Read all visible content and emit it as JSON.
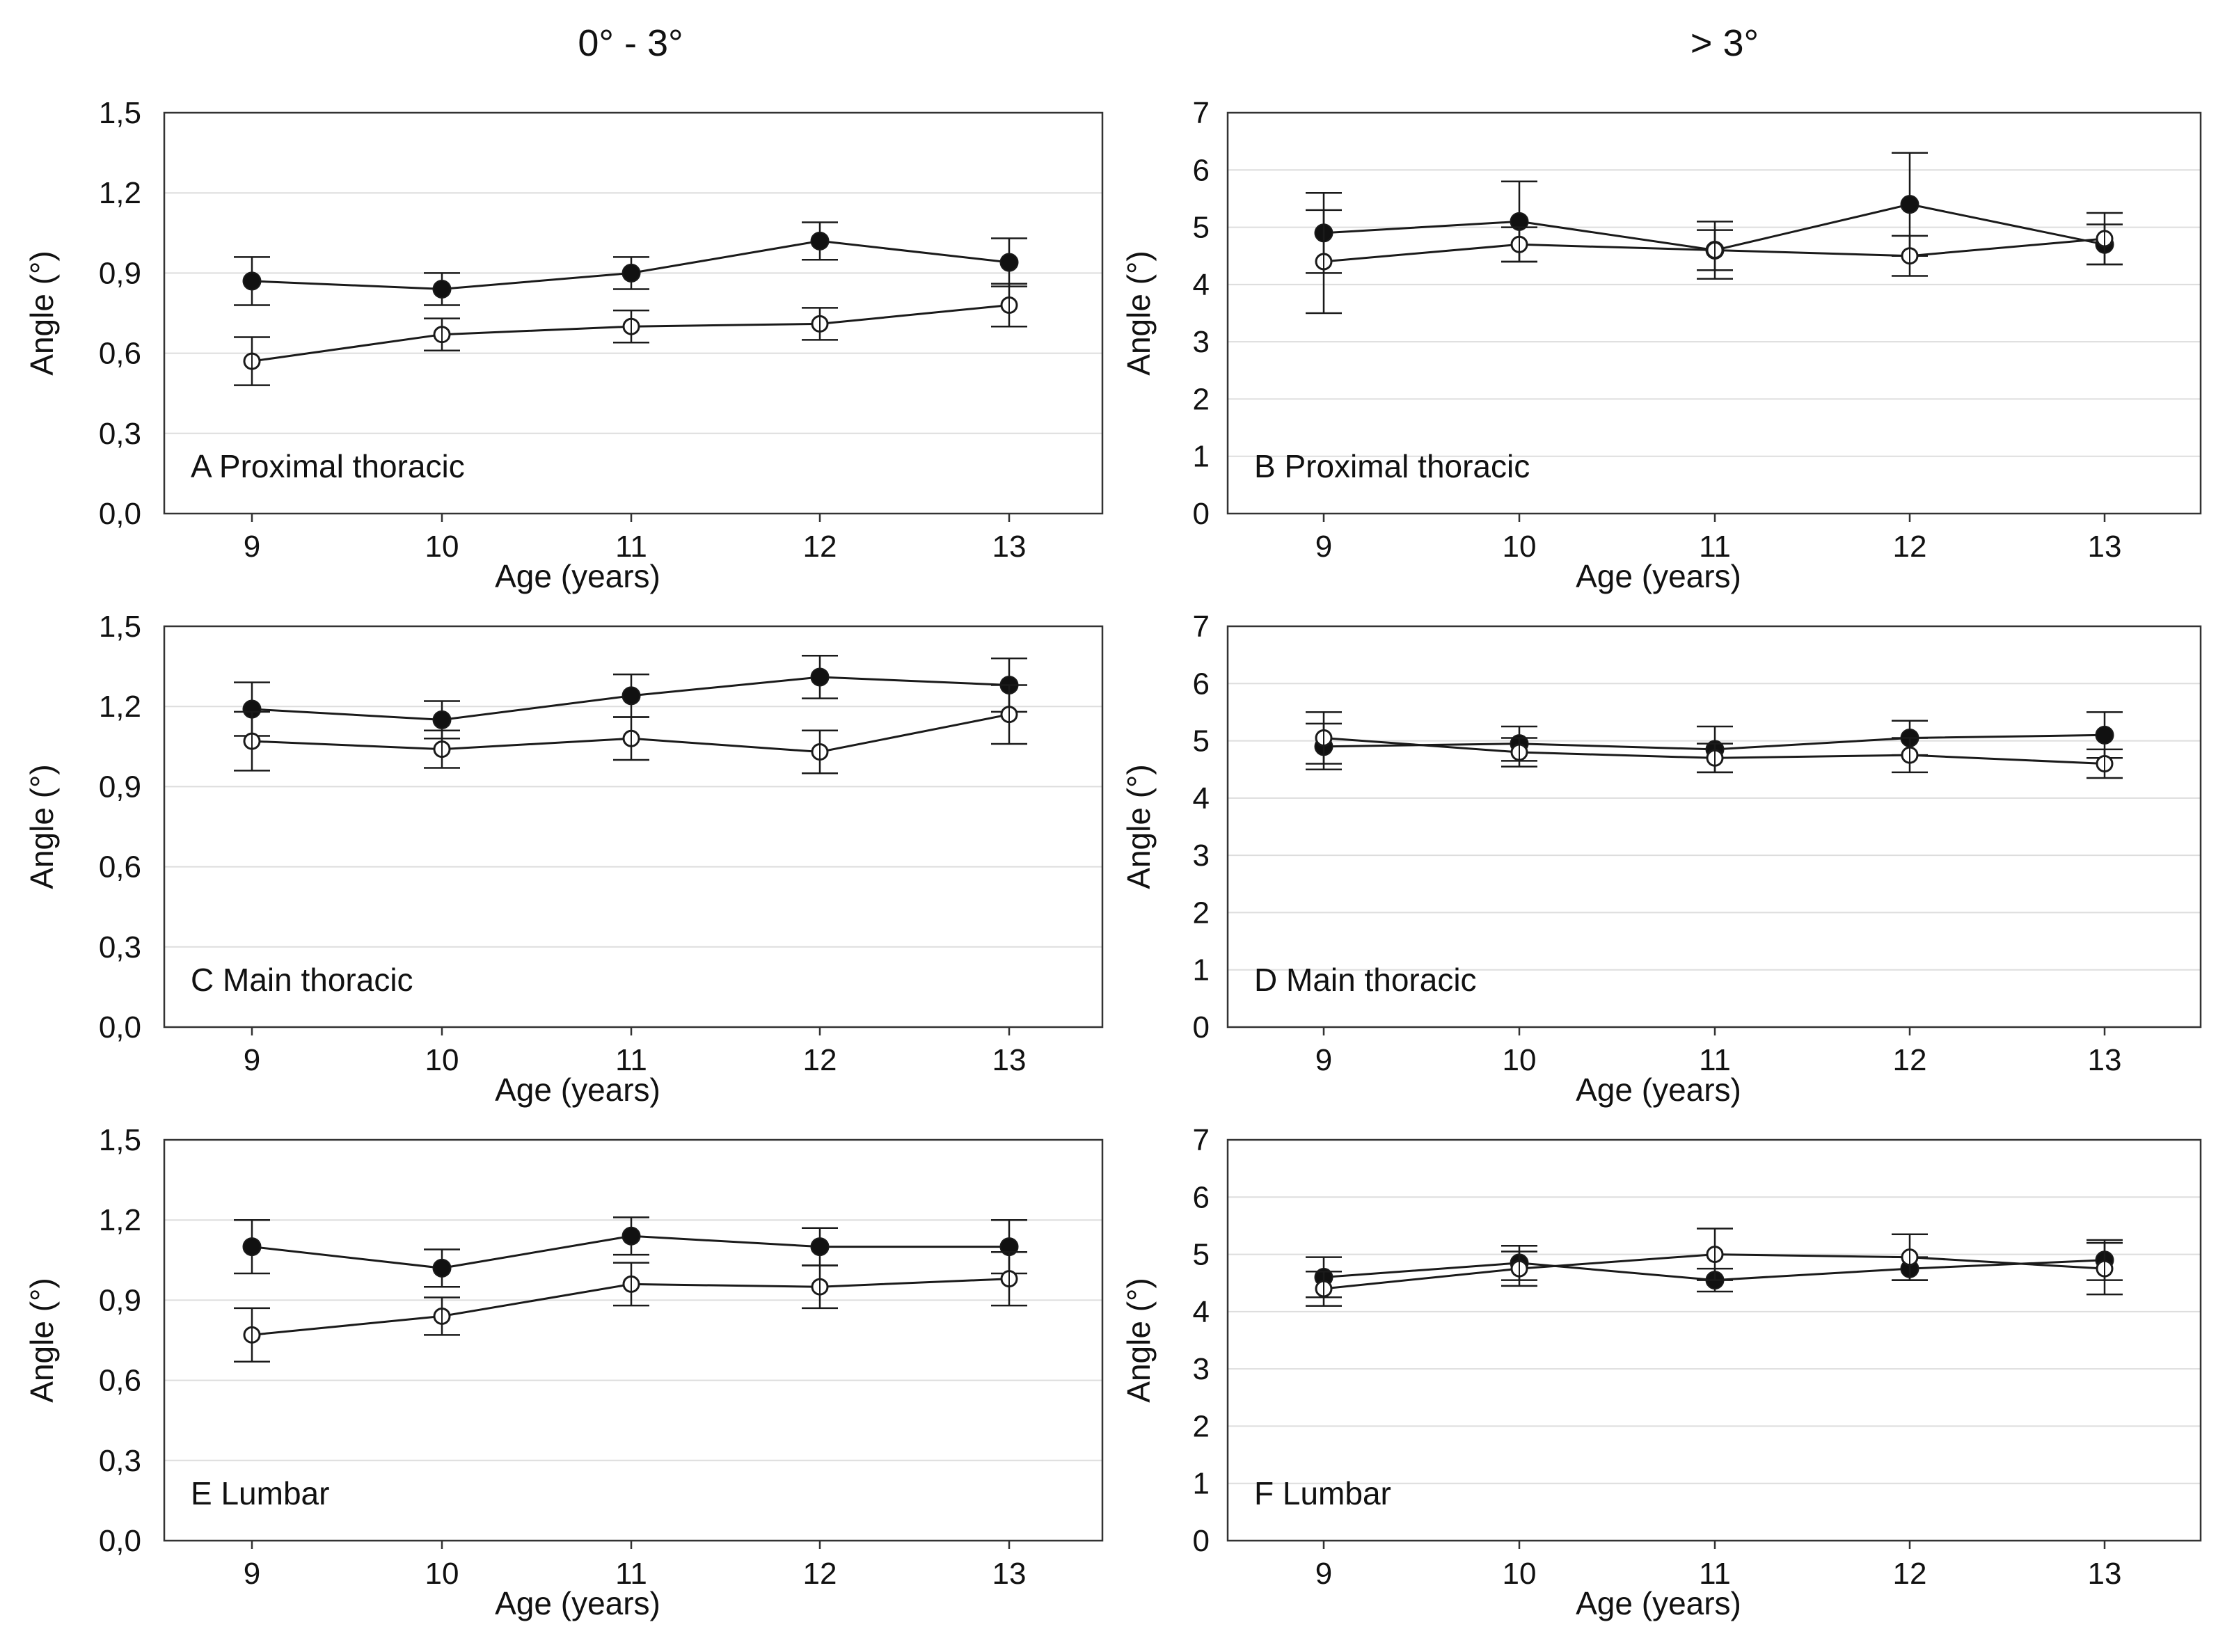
{
  "column_titles": [
    "0° - 3°",
    "> 3°"
  ],
  "styles": {
    "line": "#1a1a1a",
    "grid": "#dddddd",
    "frame": "#333333",
    "open_fill": "#ffffff",
    "filled_fill": "#111111"
  },
  "chart_data": [
    {
      "panel": "A",
      "type": "line",
      "label": "A Proximal thoracic",
      "xlabel": "Age (years)",
      "ylabel": "Angle (°)",
      "categories": [
        "9",
        "10",
        "11",
        "12",
        "13"
      ],
      "ylim": [
        0,
        1.5
      ],
      "yticks": [
        "0,0",
        "0,3",
        "0,6",
        "0,9",
        "1,2",
        "1,5"
      ],
      "series": [
        {
          "name": "filled",
          "values": [
            0.87,
            0.84,
            0.9,
            1.02,
            0.94
          ],
          "err": [
            0.09,
            0.06,
            0.06,
            0.07,
            0.09
          ]
        },
        {
          "name": "open",
          "values": [
            0.57,
            0.67,
            0.7,
            0.71,
            0.78
          ],
          "err": [
            0.09,
            0.06,
            0.06,
            0.06,
            0.08
          ]
        }
      ]
    },
    {
      "panel": "B",
      "type": "line",
      "label": "B Proximal thoracic",
      "xlabel": "Age (years)",
      "ylabel": "Angle (°)",
      "categories": [
        "9",
        "10",
        "11",
        "12",
        "13"
      ],
      "ylim": [
        0,
        7
      ],
      "yticks": [
        "0",
        "1",
        "2",
        "3",
        "4",
        "5",
        "6",
        "7"
      ],
      "series": [
        {
          "name": "filled",
          "values": [
            4.9,
            5.1,
            4.6,
            5.4,
            4.7
          ],
          "err": [
            0.7,
            0.7,
            0.5,
            0.9,
            0.35
          ]
        },
        {
          "name": "open",
          "values": [
            4.4,
            4.7,
            4.6,
            4.5,
            4.8
          ],
          "err": [
            0.9,
            0.3,
            0.35,
            0.35,
            0.45
          ]
        }
      ]
    },
    {
      "panel": "C",
      "type": "line",
      "label": "C Main thoracic",
      "xlabel": "Age (years)",
      "ylabel": "Angle (°)",
      "categories": [
        "9",
        "10",
        "11",
        "12",
        "13"
      ],
      "ylim": [
        0,
        1.5
      ],
      "yticks": [
        "0,0",
        "0,3",
        "0,6",
        "0,9",
        "1,2",
        "1,5"
      ],
      "series": [
        {
          "name": "filled",
          "values": [
            1.19,
            1.15,
            1.24,
            1.31,
            1.28
          ],
          "err": [
            0.1,
            0.07,
            0.08,
            0.08,
            0.1
          ]
        },
        {
          "name": "open",
          "values": [
            1.07,
            1.04,
            1.08,
            1.03,
            1.17
          ],
          "err": [
            0.11,
            0.07,
            0.08,
            0.08,
            0.11
          ]
        }
      ]
    },
    {
      "panel": "D",
      "type": "line",
      "label": "D Main thoracic",
      "xlabel": "Age (years)",
      "ylabel": "Angle (°)",
      "categories": [
        "9",
        "10",
        "11",
        "12",
        "13"
      ],
      "ylim": [
        0,
        7
      ],
      "yticks": [
        "0",
        "1",
        "2",
        "3",
        "4",
        "5",
        "6",
        "7"
      ],
      "series": [
        {
          "name": "filled",
          "values": [
            4.9,
            4.95,
            4.85,
            5.05,
            5.1
          ],
          "err": [
            0.4,
            0.3,
            0.4,
            0.3,
            0.4
          ]
        },
        {
          "name": "open",
          "values": [
            5.05,
            4.8,
            4.7,
            4.75,
            4.6
          ],
          "err": [
            0.45,
            0.25,
            0.25,
            0.3,
            0.25
          ]
        }
      ]
    },
    {
      "panel": "E",
      "type": "line",
      "label": "E Lumbar",
      "xlabel": "Age (years)",
      "ylabel": "Angle (°)",
      "categories": [
        "9",
        "10",
        "11",
        "12",
        "13"
      ],
      "ylim": [
        0,
        1.5
      ],
      "yticks": [
        "0,0",
        "0,3",
        "0,6",
        "0,9",
        "1,2",
        "1,5"
      ],
      "series": [
        {
          "name": "filled",
          "values": [
            1.1,
            1.02,
            1.14,
            1.1,
            1.1
          ],
          "err": [
            0.1,
            0.07,
            0.07,
            0.07,
            0.1
          ]
        },
        {
          "name": "open",
          "values": [
            0.77,
            0.84,
            0.96,
            0.95,
            0.98
          ],
          "err": [
            0.1,
            0.07,
            0.08,
            0.08,
            0.1
          ]
        }
      ]
    },
    {
      "panel": "F",
      "type": "line",
      "label": "F Lumbar",
      "xlabel": "Age (years)",
      "ylabel": "Angle (°)",
      "categories": [
        "9",
        "10",
        "11",
        "12",
        "13"
      ],
      "ylim": [
        0,
        7
      ],
      "yticks": [
        "0",
        "1",
        "2",
        "3",
        "4",
        "5",
        "6",
        "7"
      ],
      "series": [
        {
          "name": "filled",
          "values": [
            4.6,
            4.85,
            4.55,
            4.75,
            4.9
          ],
          "err": [
            0.35,
            0.3,
            0.2,
            0.2,
            0.35
          ]
        },
        {
          "name": "open",
          "values": [
            4.4,
            4.75,
            5.0,
            4.95,
            4.75
          ],
          "err": [
            0.3,
            0.3,
            0.45,
            0.4,
            0.45
          ]
        }
      ]
    }
  ]
}
